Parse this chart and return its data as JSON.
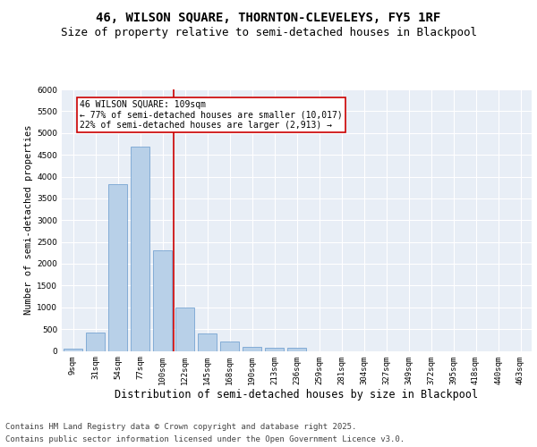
{
  "title": "46, WILSON SQUARE, THORNTON-CLEVELEYS, FY5 1RF",
  "subtitle": "Size of property relative to semi-detached houses in Blackpool",
  "xlabel": "Distribution of semi-detached houses by size in Blackpool",
  "ylabel": "Number of semi-detached properties",
  "categories": [
    "9sqm",
    "31sqm",
    "54sqm",
    "77sqm",
    "100sqm",
    "122sqm",
    "145sqm",
    "168sqm",
    "190sqm",
    "213sqm",
    "236sqm",
    "259sqm",
    "281sqm",
    "304sqm",
    "327sqm",
    "349sqm",
    "372sqm",
    "395sqm",
    "418sqm",
    "440sqm",
    "463sqm"
  ],
  "values": [
    50,
    430,
    3820,
    4680,
    2310,
    990,
    405,
    210,
    90,
    75,
    65,
    0,
    0,
    0,
    0,
    0,
    0,
    0,
    0,
    0,
    0
  ],
  "bar_color": "#b8d0e8",
  "bar_edge_color": "#6699cc",
  "vline_color": "#cc0000",
  "annotation_text": "46 WILSON SQUARE: 109sqm\n← 77% of semi-detached houses are smaller (10,017)\n22% of semi-detached houses are larger (2,913) →",
  "annotation_box_color": "#cc0000",
  "ylim": [
    0,
    6000
  ],
  "yticks": [
    0,
    500,
    1000,
    1500,
    2000,
    2500,
    3000,
    3500,
    4000,
    4500,
    5000,
    5500,
    6000
  ],
  "background_color": "#e8eef6",
  "grid_color": "#ffffff",
  "footer_line1": "Contains HM Land Registry data © Crown copyright and database right 2025.",
  "footer_line2": "Contains public sector information licensed under the Open Government Licence v3.0.",
  "title_fontsize": 10,
  "subtitle_fontsize": 9,
  "footer_fontsize": 6.5,
  "ylabel_fontsize": 7.5,
  "xlabel_fontsize": 8.5,
  "tick_fontsize": 6.5,
  "annotation_fontsize": 7
}
